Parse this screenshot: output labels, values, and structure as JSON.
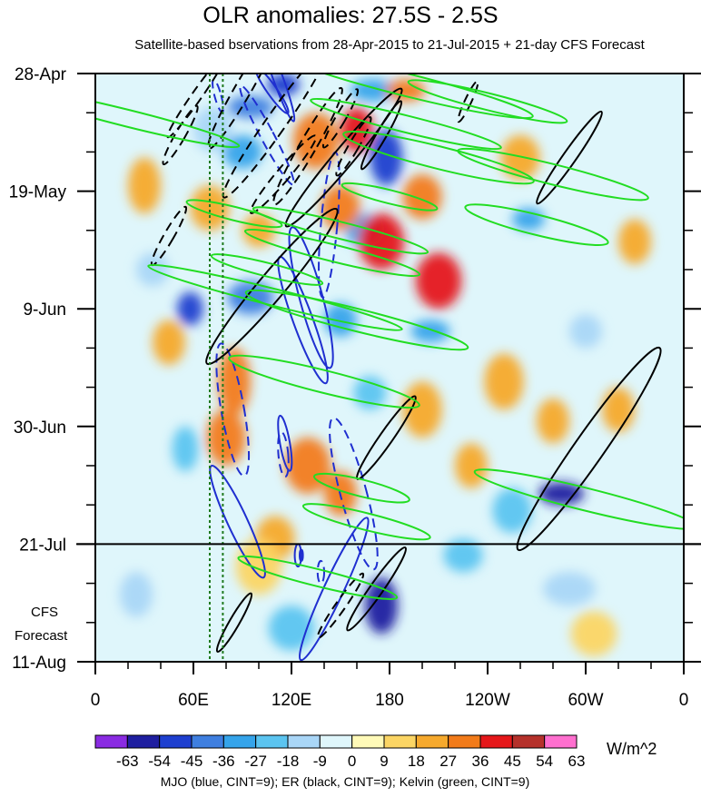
{
  "chart_data": {
    "type": "heatmap",
    "title": "OLR anomalies: 27.5S - 2.5S",
    "subtitle": "Satellite-based bservations from 28-Apr-2015 to 21-Jul-2015 + 21-day CFS Forecast",
    "x_ticks": [
      "0",
      "60E",
      "120E",
      "180",
      "120W",
      "60W",
      "0"
    ],
    "x_tick_lon": [
      0,
      60,
      120,
      180,
      240,
      300,
      360
    ],
    "xlim": [
      0,
      360
    ],
    "y_ticks": [
      "28-Apr",
      "19-May",
      "9-Jun",
      "30-Jun",
      "21-Jul",
      "11-Aug"
    ],
    "y_tick_day": [
      0,
      21,
      42,
      63,
      84,
      105
    ],
    "ylim": [
      0,
      105
    ],
    "y_direction": "time increases downward",
    "forecast_start_label": "21-Jul",
    "forecast_label": [
      "CFS",
      "Forecast"
    ],
    "colorbar": {
      "labels": [
        "-63",
        "-54",
        "-45",
        "-36",
        "-27",
        "-18",
        "-9",
        "0",
        "9",
        "18",
        "27",
        "36",
        "45",
        "54",
        "63"
      ],
      "colors": [
        "#8a2be2",
        "#1f1fa0",
        "#1e3fcf",
        "#3f7fe0",
        "#35a4ea",
        "#5bc4f0",
        "#a9d6f7",
        "#dff6fb",
        "#fffab8",
        "#fbd564",
        "#f6a92d",
        "#f27b1a",
        "#e5171a",
        "#b5312b",
        "#ff6fcf"
      ],
      "units": "W/m^2"
    },
    "caption": "MJO (blue, CINT=9); ER (black, CINT=9); Kelvin (green, CINT=9)",
    "grid": false,
    "contour_colors": {
      "mjo": "#1f2fd0",
      "er": "#000000",
      "kelvin": "#22dd22"
    },
    "blobs": [
      [
        95,
        6,
        14,
        2,
        -45
      ],
      [
        115,
        2,
        10,
        2,
        -54
      ],
      [
        90,
        14,
        12,
        3,
        -36
      ],
      [
        170,
        3,
        14,
        2,
        -36
      ],
      [
        178,
        15,
        10,
        5,
        -54
      ],
      [
        165,
        28,
        12,
        3,
        -36
      ],
      [
        95,
        40,
        14,
        3,
        -45
      ],
      [
        58,
        42,
        8,
        3,
        -54
      ],
      [
        150,
        44,
        10,
        3,
        -36
      ],
      [
        205,
        46,
        12,
        2,
        -36
      ],
      [
        55,
        67,
        8,
        4,
        -27
      ],
      [
        168,
        57,
        10,
        3,
        -27
      ],
      [
        285,
        75,
        14,
        2,
        -63
      ],
      [
        255,
        78,
        12,
        4,
        -27
      ],
      [
        175,
        95,
        10,
        5,
        -63
      ],
      [
        120,
        99,
        14,
        4,
        -27
      ],
      [
        290,
        92,
        16,
        3,
        -18
      ],
      [
        225,
        86,
        12,
        3,
        -27
      ],
      [
        72,
        10,
        12,
        4,
        -18
      ],
      [
        265,
        26,
        10,
        2,
        -36
      ],
      [
        35,
        35,
        10,
        3,
        -18
      ],
      [
        300,
        46,
        10,
        3,
        -18
      ],
      [
        25,
        93,
        10,
        4,
        -18
      ],
      [
        135,
        12,
        14,
        5,
        27
      ],
      [
        150,
        24,
        12,
        4,
        27
      ],
      [
        175,
        30,
        14,
        5,
        36
      ],
      [
        200,
        22,
        12,
        4,
        27
      ],
      [
        210,
        37,
        14,
        5,
        36
      ],
      [
        160,
        10,
        10,
        4,
        36
      ],
      [
        70,
        24,
        12,
        4,
        18
      ],
      [
        30,
        20,
        10,
        5,
        18
      ],
      [
        85,
        55,
        10,
        6,
        27
      ],
      [
        80,
        65,
        12,
        5,
        27
      ],
      [
        130,
        70,
        14,
        5,
        27
      ],
      [
        150,
        75,
        10,
        4,
        27
      ],
      [
        200,
        60,
        12,
        5,
        18
      ],
      [
        250,
        55,
        12,
        5,
        18
      ],
      [
        280,
        62,
        10,
        4,
        18
      ],
      [
        320,
        60,
        10,
        4,
        18
      ],
      [
        230,
        70,
        10,
        4,
        18
      ],
      [
        110,
        83,
        12,
        4,
        18
      ],
      [
        260,
        15,
        12,
        4,
        18
      ],
      [
        100,
        28,
        10,
        3,
        18
      ],
      [
        45,
        48,
        10,
        4,
        18
      ],
      [
        190,
        3,
        12,
        2,
        27
      ],
      [
        330,
        30,
        10,
        4,
        18
      ],
      [
        305,
        100,
        14,
        4,
        9
      ],
      [
        100,
        88,
        14,
        5,
        9
      ]
    ],
    "contours": {
      "mjo": [
        [
          112,
          1,
          3,
          8,
          -20,
          "solid"
        ],
        [
          105,
          11,
          4,
          10,
          -28,
          "dashed"
        ],
        [
          108,
          3,
          3,
          5,
          -35,
          "solid"
        ],
        [
          75,
          4,
          2,
          3,
          -15,
          "dashed"
        ],
        [
          143,
          27,
          5,
          13,
          5,
          "dashed"
        ],
        [
          127,
          44,
          6,
          12,
          -20,
          "solid"
        ],
        [
          132,
          40,
          7,
          13,
          -15,
          "solid"
        ],
        [
          87,
          80,
          6,
          11,
          -25,
          "solid"
        ],
        [
          84,
          60,
          7,
          12,
          -10,
          "dashed"
        ],
        [
          116,
          66,
          3,
          5,
          -10,
          "solid"
        ],
        [
          115,
          68,
          3,
          4,
          -5,
          "dashed"
        ],
        [
          158,
          75,
          8,
          14,
          -15,
          "dashed"
        ],
        [
          124,
          86,
          2,
          2,
          0,
          "solid"
        ],
        [
          126,
          86,
          1,
          1,
          0,
          "solid"
        ],
        [
          146,
          92,
          6,
          14,
          25,
          "solid"
        ],
        [
          138,
          89,
          2,
          2,
          0,
          "dashed"
        ]
      ],
      "er": [
        [
          62,
          4,
          3,
          9,
          35,
          "dashed"
        ],
        [
          90,
          3,
          5,
          12,
          30,
          "dashed"
        ],
        [
          110,
          9,
          6,
          16,
          35,
          "dashed"
        ],
        [
          130,
          13,
          5,
          12,
          30,
          "dashed"
        ],
        [
          115,
          18,
          4,
          9,
          40,
          "dashed"
        ],
        [
          152,
          15,
          6,
          16,
          40,
          "solid"
        ],
        [
          175,
          11,
          3,
          7,
          30,
          "solid"
        ],
        [
          158,
          13,
          3,
          6,
          30,
          "dashed"
        ],
        [
          108,
          38,
          8,
          18,
          40,
          "solid"
        ],
        [
          178,
          65,
          4,
          9,
          35,
          "solid"
        ],
        [
          290,
          15,
          4,
          10,
          35,
          "solid"
        ],
        [
          302,
          67,
          9,
          22,
          35,
          "solid"
        ],
        [
          228,
          5,
          2,
          4,
          25,
          "dashed"
        ],
        [
          52,
          11,
          3,
          6,
          30,
          "dashed"
        ],
        [
          45,
          29,
          3,
          6,
          30,
          "dashed"
        ],
        [
          150,
          8,
          3,
          6,
          30,
          "dashed"
        ],
        [
          150,
          95,
          3,
          7,
          35,
          "dashed"
        ],
        [
          172,
          92,
          4,
          9,
          35,
          "solid"
        ],
        [
          85,
          98,
          3,
          6,
          30,
          "solid"
        ]
      ],
      "kelvin": [
        [
          20,
          8,
          70,
          1.5,
          "solid"
        ],
        [
          190,
          2,
          80,
          2,
          "solid"
        ],
        [
          190,
          9,
          60,
          1.5,
          "solid"
        ],
        [
          210,
          15,
          60,
          2,
          "solid"
        ],
        [
          270,
          27,
          45,
          1.8,
          "solid"
        ],
        [
          240,
          5,
          50,
          1.5,
          "solid"
        ],
        [
          280,
          18,
          60,
          1.8,
          "solid"
        ],
        [
          150,
          28,
          55,
          1.5,
          "solid"
        ],
        [
          145,
          32,
          55,
          1.5,
          "solid"
        ],
        [
          110,
          40,
          80,
          1.5,
          "solid"
        ],
        [
          160,
          44,
          70,
          2,
          "solid"
        ],
        [
          140,
          55,
          60,
          2,
          "solid"
        ],
        [
          300,
          76,
          70,
          2,
          "solid"
        ],
        [
          166,
          80,
          40,
          1.5,
          "solid"
        ],
        [
          136,
          90,
          50,
          1.5,
          "solid"
        ],
        [
          163,
          74,
          30,
          1.5,
          "solid"
        ],
        [
          85,
          25,
          30,
          1.2,
          "solid"
        ],
        [
          180,
          22,
          30,
          1.2,
          "solid"
        ],
        [
          105,
          35,
          35,
          1.2,
          "solid"
        ]
      ]
    }
  }
}
